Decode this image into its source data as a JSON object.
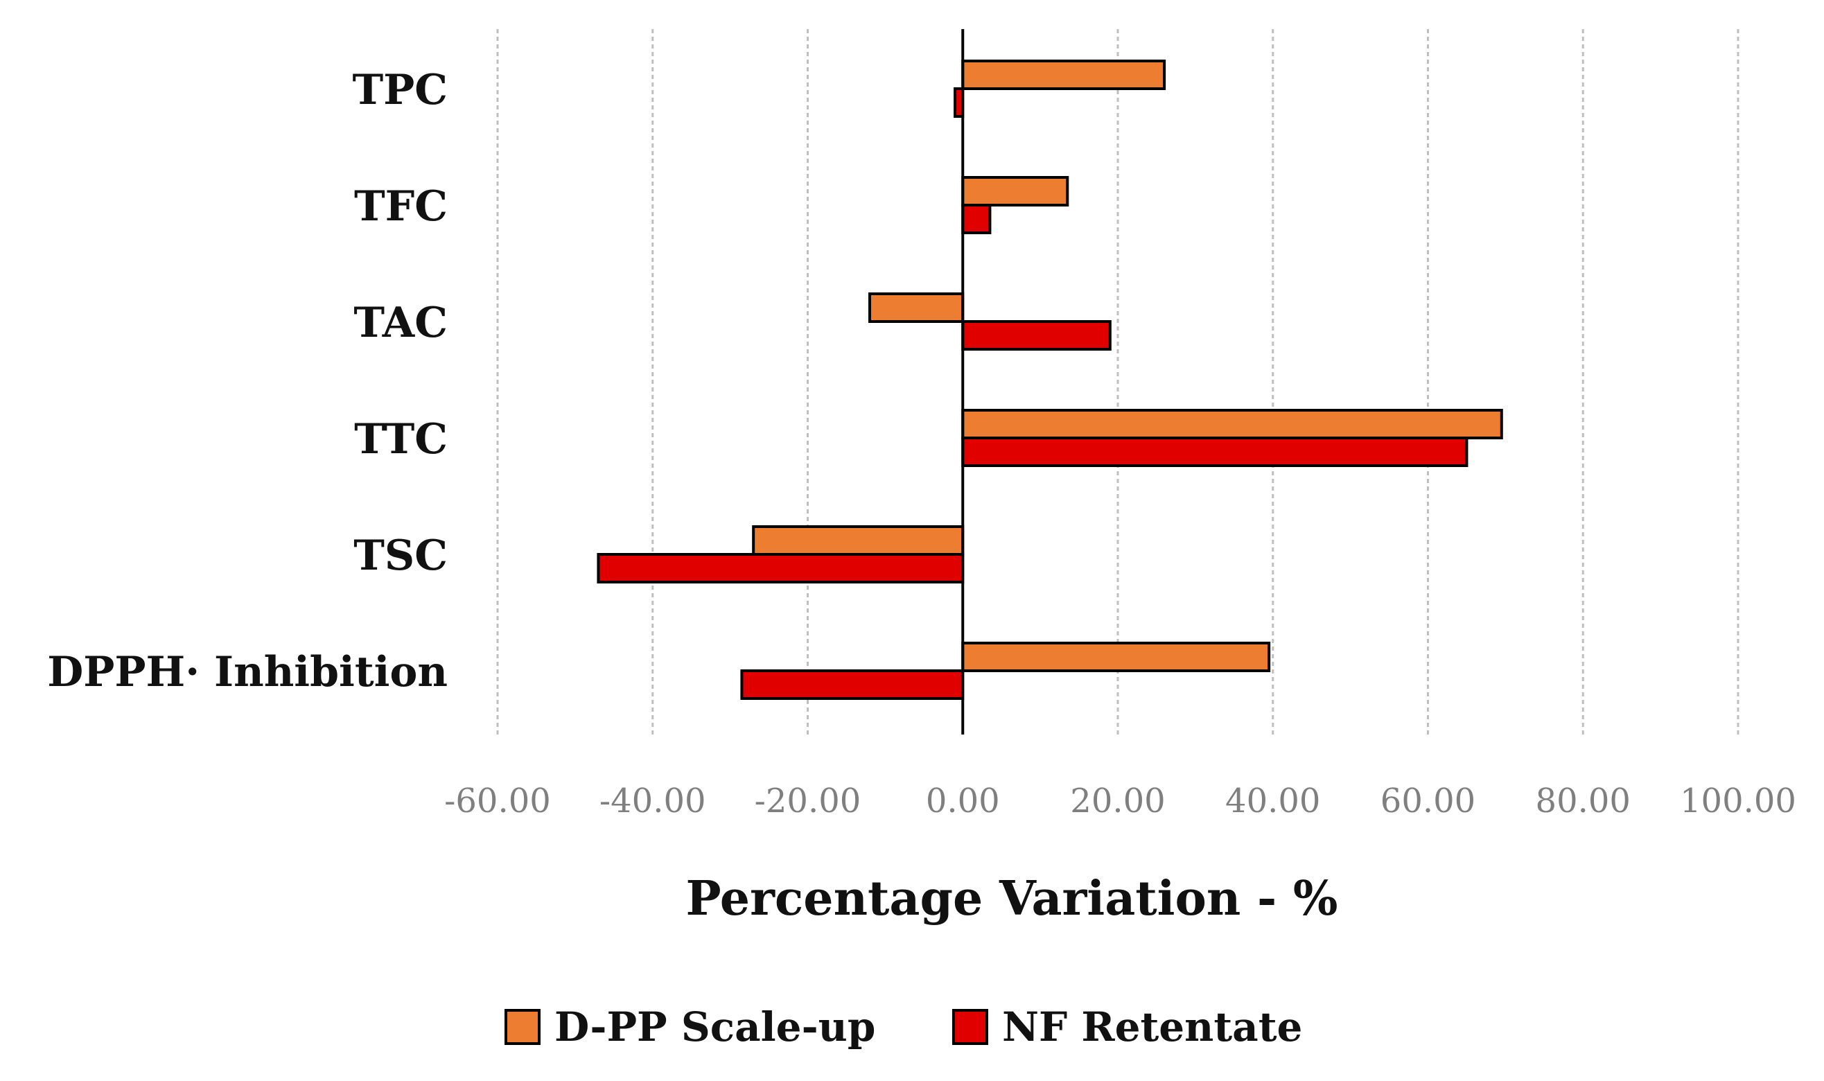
{
  "chart_data": {
    "type": "bar",
    "orientation": "horizontal",
    "categories": [
      "TPC",
      "TFC",
      "TAC",
      "TTC",
      "TSC",
      "DPPH· Inhibition"
    ],
    "series": [
      {
        "name": "D-PP Scale-up",
        "color": "#ED7D31",
        "values": [
          26.0,
          13.5,
          -12.0,
          69.5,
          -27.0,
          39.5
        ]
      },
      {
        "name": "NF Retentate",
        "color": "#E00000",
        "values": [
          -1.0,
          3.5,
          19.0,
          65.0,
          -47.0,
          -28.5
        ]
      }
    ],
    "xlabel": "Percentage Variation - %",
    "ylabel": "",
    "xlim": [
      -60,
      100
    ],
    "xticks": [
      "-60.00",
      "-40.00",
      "-20.00",
      "0.00",
      "20.00",
      "40.00",
      "60.00",
      "80.00",
      "100.00"
    ],
    "grid": "vertical dashed",
    "legend_position": "bottom",
    "bar_outline_color": "#000000",
    "gridline_color": "#bfbfbf"
  }
}
